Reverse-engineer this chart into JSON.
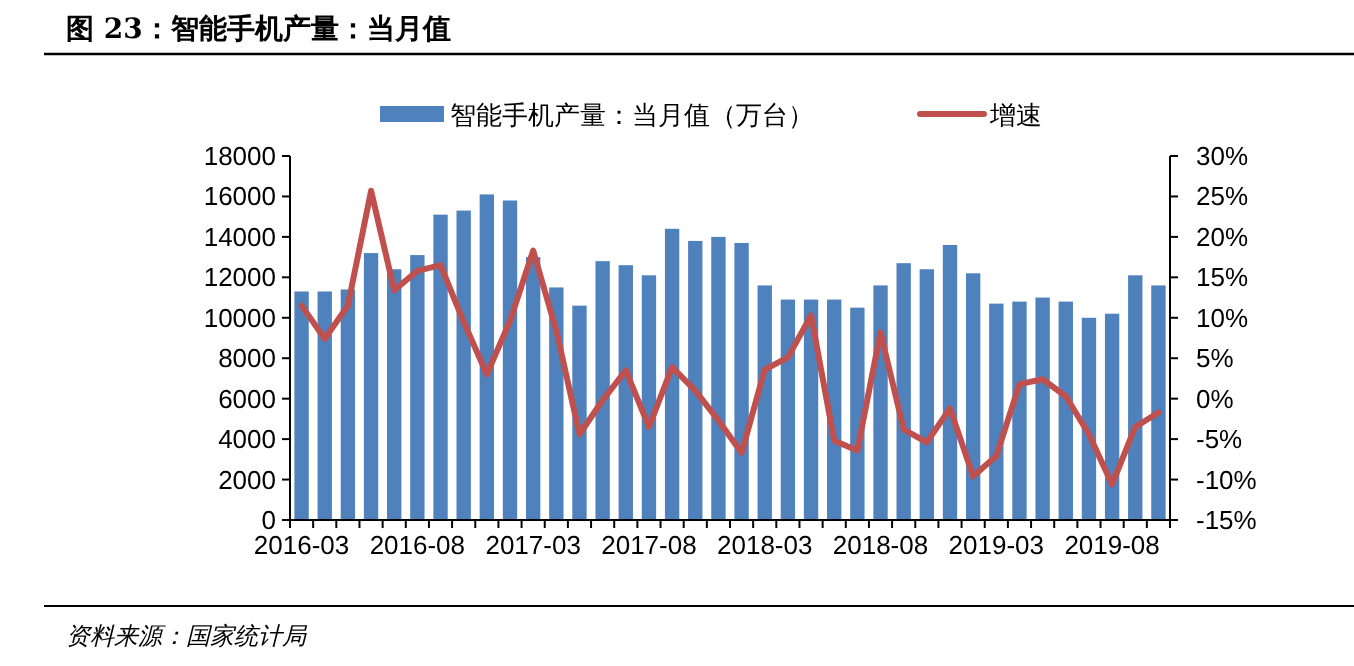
{
  "chart_data": {
    "type": "bar",
    "title": "图 23：智能手机产量：当月值",
    "categories": [
      "2016-03",
      null,
      null,
      null,
      null,
      "2016-08",
      null,
      null,
      null,
      null,
      "2017-03",
      null,
      null,
      null,
      null,
      "2017-08",
      null,
      null,
      null,
      null,
      "2018-03",
      null,
      null,
      null,
      null,
      "2018-08",
      null,
      null,
      null,
      null,
      "2019-03",
      null,
      null,
      null,
      null,
      "2019-08",
      null,
      null
    ],
    "series": [
      {
        "name": "智能手机产量：当月值（万台）",
        "color": "#4f81bd",
        "values": [
          11300,
          11300,
          11400,
          13200,
          12400,
          13100,
          15100,
          15300,
          16100,
          15800,
          13000,
          11500,
          10600,
          12800,
          12600,
          12100,
          14400,
          13800,
          14000,
          13700,
          11600,
          10900,
          10900,
          10900,
          10500,
          11600,
          12700,
          12400,
          13600,
          12200,
          10700,
          10800,
          11000,
          10800,
          10000,
          10200,
          12100,
          11600
        ]
      },
      {
        "name": "增速",
        "type": "line",
        "axis": "y2",
        "color": "#c0504d",
        "values": [
          11.5,
          7.4,
          11.5,
          25.7,
          13.4,
          15.8,
          16.5,
          9.5,
          3.0,
          9.6,
          18.3,
          8.4,
          -4.4,
          -0.2,
          3.5,
          -3.5,
          3.9,
          1.0,
          -2.7,
          -6.7,
          3.6,
          5.1,
          10.3,
          -5.2,
          -6.4,
          8.2,
          -3.8,
          -5.4,
          -1.2,
          -9.6,
          -7.1,
          1.8,
          2.4,
          0.3,
          -4.4,
          -10.6,
          -3.5,
          -1.7
        ]
      }
    ],
    "ylim": [
      0,
      18000
    ],
    "yticks": [
      0,
      2000,
      4000,
      6000,
      8000,
      10000,
      12000,
      14000,
      16000,
      18000
    ],
    "y2lim": [
      -15,
      30
    ],
    "y2ticks": [
      {
        "value": -15,
        "label": "-15%"
      },
      {
        "value": -10,
        "label": "-10%"
      },
      {
        "value": -5,
        "label": "-5%"
      },
      {
        "value": 0,
        "label": "0%"
      },
      {
        "value": 5,
        "label": "5%"
      },
      {
        "value": 10,
        "label": "10%"
      },
      {
        "value": 15,
        "label": "15%"
      },
      {
        "value": 20,
        "label": "20%"
      },
      {
        "value": 25,
        "label": "25%"
      },
      {
        "value": 30,
        "label": "30%"
      }
    ],
    "legend": "top",
    "grid": false,
    "annotations": [
      "资料来源：国家统计局"
    ]
  }
}
